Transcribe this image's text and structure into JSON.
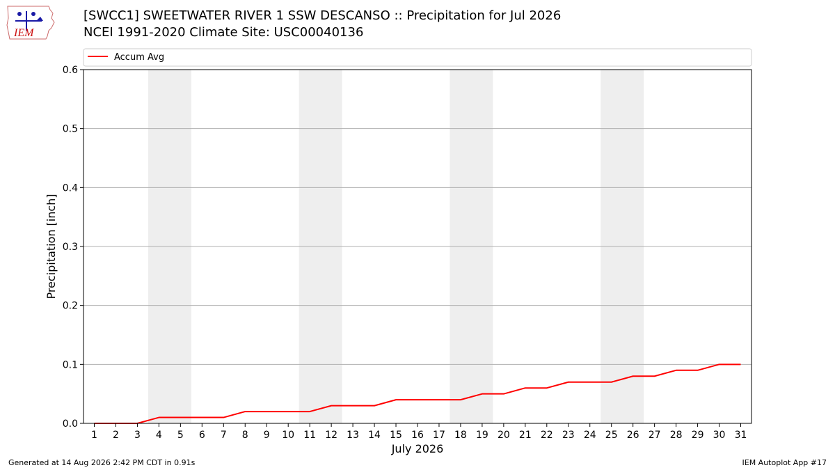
{
  "header": {
    "title_line1": "[SWCC1] SWEETWATER RIVER 1 SSW DESCANSO :: Precipitation for Jul 2026",
    "title_line2": "NCEI 1991-2020 Climate Site: USC00040136",
    "logo_text": "IEM"
  },
  "footer": {
    "left": "Generated at 14 Aug 2026 2:42 PM CDT in 0.91s",
    "right": "IEM Autoplot App #17"
  },
  "colors": {
    "series_line": "#ff0000",
    "weekend_band": "#eeeeee",
    "grid": "#b0b0b0",
    "logo_blue": "#1a1aa6",
    "logo_red": "#cc1111"
  },
  "chart_data": {
    "type": "line",
    "xlabel": "July 2026",
    "ylabel": "Precipitation [inch]",
    "xlim": [
      0.5,
      31.5
    ],
    "ylim": [
      0.0,
      0.6
    ],
    "y_ticks": [
      0.0,
      0.1,
      0.2,
      0.3,
      0.4,
      0.5,
      0.6
    ],
    "y_tick_labels": [
      "0.0",
      "0.1",
      "0.2",
      "0.3",
      "0.4",
      "0.5",
      "0.6"
    ],
    "x": [
      1,
      2,
      3,
      4,
      5,
      6,
      7,
      8,
      9,
      10,
      11,
      12,
      13,
      14,
      15,
      16,
      17,
      18,
      19,
      20,
      21,
      22,
      23,
      24,
      25,
      26,
      27,
      28,
      29,
      30,
      31
    ],
    "x_tick_labels": [
      "1",
      "2",
      "3",
      "4",
      "5",
      "6",
      "7",
      "8",
      "9",
      "10",
      "11",
      "12",
      "13",
      "14",
      "15",
      "16",
      "17",
      "18",
      "19",
      "20",
      "21",
      "22",
      "23",
      "24",
      "25",
      "26",
      "27",
      "28",
      "29",
      "30",
      "31"
    ],
    "weekend_days": [
      [
        4,
        5
      ],
      [
        11,
        12
      ],
      [
        18,
        19
      ],
      [
        25,
        26
      ]
    ],
    "grid": "y",
    "legend_position": "top",
    "series": [
      {
        "name": "Accum Avg",
        "color": "#ff0000",
        "values": [
          0.0,
          0.0,
          0.0,
          0.01,
          0.01,
          0.01,
          0.01,
          0.02,
          0.02,
          0.02,
          0.02,
          0.03,
          0.03,
          0.03,
          0.04,
          0.04,
          0.04,
          0.04,
          0.05,
          0.05,
          0.06,
          0.06,
          0.07,
          0.07,
          0.07,
          0.08,
          0.08,
          0.09,
          0.09,
          0.1,
          0.1
        ]
      }
    ]
  }
}
